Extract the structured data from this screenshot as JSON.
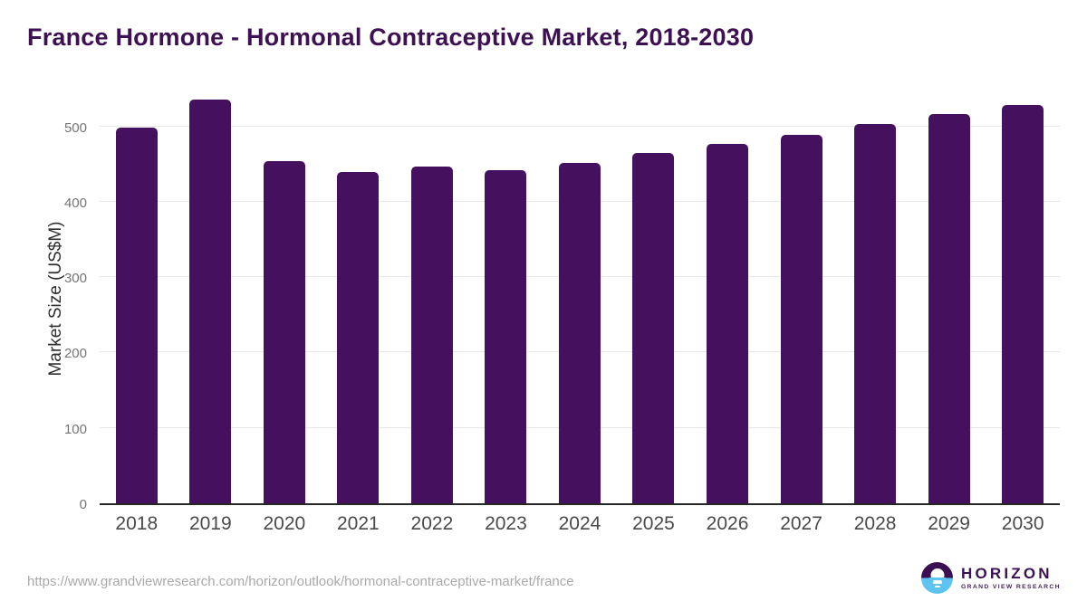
{
  "title": "France Hormone - Hormonal Contraceptive Market, 2018-2030",
  "source_url": "https://www.grandviewresearch.com/horizon/outlook/hormonal-contraceptive-market/france",
  "logo": {
    "name": "HORIZON",
    "subtitle": "GRAND VIEW RESEARCH",
    "purple": "#3b1053",
    "blue": "#5fc3ef"
  },
  "colors": {
    "bar": "#45115f",
    "title_text": "#3d1152",
    "axis_line": "#262626",
    "gridline": "#e7e7e7",
    "x_label": "#4a4a4a",
    "y_label": "#757575",
    "url_text": "#a9a9a9"
  },
  "chart_data": {
    "type": "bar",
    "title": "France Hormone - Hormonal Contraceptive Market, 2018-2030",
    "categories": [
      "2018",
      "2019",
      "2020",
      "2021",
      "2022",
      "2023",
      "2024",
      "2025",
      "2026",
      "2027",
      "2028",
      "2029",
      "2030"
    ],
    "values": [
      499,
      536,
      454,
      440,
      447,
      442,
      452,
      465,
      477,
      489,
      503,
      517,
      529
    ],
    "xlabel": "",
    "ylabel": "Market Size (US$M)",
    "ylim": [
      0,
      550
    ],
    "yticks": [
      0,
      100,
      200,
      300,
      400,
      500
    ],
    "grid": true,
    "legend": false,
    "bar_color": "#45115f"
  }
}
